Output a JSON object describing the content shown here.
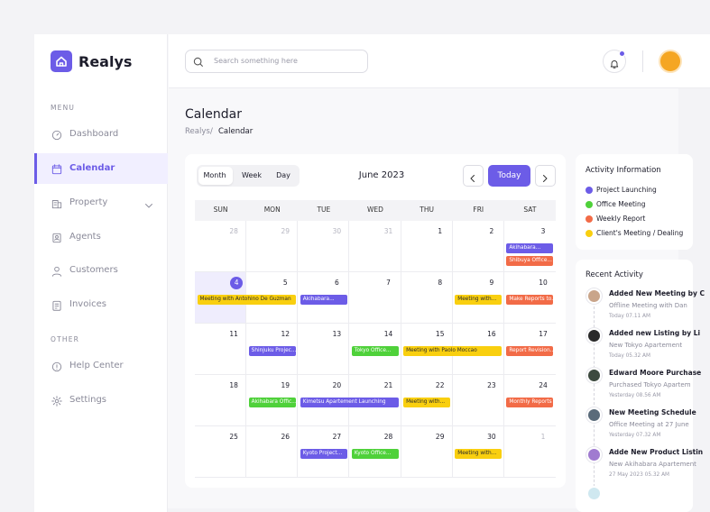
{
  "sidebar": {
    "brand": "Realys",
    "menu_label": "MENU",
    "menu": [
      "Dashboard",
      "Calendar",
      "Property",
      "Agents",
      "Customers",
      "Invoices"
    ],
    "other_label": "OTHER",
    "other": [
      "Help Center",
      "Settings"
    ]
  },
  "search_placeholder": "Search something here",
  "page": {
    "title": "Calendar",
    "breadcrumb": [
      "Realys",
      "Calendar"
    ]
  },
  "calendar": {
    "views": [
      "Month",
      "Week",
      "Day"
    ],
    "month": "June 2023",
    "today_button": "Today",
    "weekdays": [
      "SUN",
      "MON",
      "TUE",
      "WED",
      "THU",
      "FRI",
      "SAT"
    ],
    "weeks": [
      [
        28,
        29,
        30,
        31,
        1,
        2,
        3
      ],
      [
        4,
        5,
        6,
        7,
        8,
        9,
        10
      ],
      [
        11,
        12,
        13,
        14,
        15,
        16,
        17
      ],
      [
        18,
        19,
        20,
        21,
        22,
        23,
        24
      ],
      [
        25,
        26,
        27,
        28,
        29,
        30,
        1
      ]
    ],
    "today": 4,
    "events": [
      {
        "label": "Akihabara...",
        "day": 3,
        "days": 1,
        "color": "#6c5ce7"
      },
      {
        "label": "Shibuya Office...",
        "day": 3,
        "days": 1,
        "color": "#f26b47"
      },
      {
        "label": "Meeting with Antohino De Guzman",
        "day": 4,
        "days": 2,
        "color": "#f9cf0f"
      },
      {
        "label": "Akihabara...",
        "day": 6,
        "days": 1,
        "color": "#6c5ce7"
      },
      {
        "label": "Meeting with...",
        "day": 9,
        "days": 1,
        "color": "#f9cf0f"
      },
      {
        "label": "Make Reports to...",
        "day": 10,
        "days": 1,
        "color": "#f26b47"
      },
      {
        "label": "Shinjuku Projec...",
        "day": 12,
        "days": 1,
        "color": "#6c5ce7"
      },
      {
        "label": "Tokyo Office...",
        "day": 14,
        "days": 1,
        "color": "#4fd13a"
      },
      {
        "label": "Meeting with Paolo Moccao",
        "day": 15,
        "days": 2,
        "color": "#f9cf0f"
      },
      {
        "label": "Report Revision...",
        "day": 17,
        "days": 1,
        "color": "#f26b47"
      },
      {
        "label": "Akihabara Offic...",
        "day": 19,
        "days": 1,
        "color": "#4fd13a"
      },
      {
        "label": "Kimetsu Apartement Launching",
        "day": 20,
        "days": 2,
        "color": "#6c5ce7"
      },
      {
        "label": "Meeting with...",
        "day": 22,
        "days": 1,
        "color": "#f9cf0f"
      },
      {
        "label": "Monthly Reports",
        "day": 24,
        "days": 1,
        "color": "#f26b47"
      },
      {
        "label": "Kyoto Project...",
        "day": 27,
        "days": 1,
        "color": "#6c5ce7"
      },
      {
        "label": "Kyoto Office...",
        "day": 28,
        "days": 1,
        "color": "#4fd13a"
      },
      {
        "label": "Meeting with...",
        "day": 30,
        "days": 1,
        "color": "#f9cf0f"
      }
    ]
  },
  "activity_information": {
    "title": "Activity Information",
    "items": [
      {
        "label": "Project Launching",
        "color": "#6c5ce7"
      },
      {
        "label": "Office Meeting",
        "color": "#4fd13a"
      },
      {
        "label": "Weekly Report",
        "color": "#f26b47"
      },
      {
        "label": "Client's Meeting / Dealing",
        "color": "#f9cf0f"
      }
    ]
  },
  "recent_activity": {
    "title": "Recent Activity",
    "items": [
      {
        "title": "Added New Meeting by C",
        "subtitle": "Offline Meeting with Dan",
        "time": "Today 07.11 AM"
      },
      {
        "title": "Added new Listing by Li",
        "subtitle": "New Tokyo Apartement",
        "time": "Today 05.32 AM"
      },
      {
        "title": "Edward Moore Purchase",
        "subtitle": "Purchased Tokyo Apartem",
        "time": "Yesterday 08.56 AM"
      },
      {
        "title": "New Meeting Schedule",
        "subtitle": "Office Meeting at 27 June",
        "time": "Yesterday 07.32 AM"
      },
      {
        "title": "Adde New Product Listin",
        "subtitle": "New Akihabara Apartement",
        "time": "27 May 2023 05.32 AM"
      }
    ]
  }
}
